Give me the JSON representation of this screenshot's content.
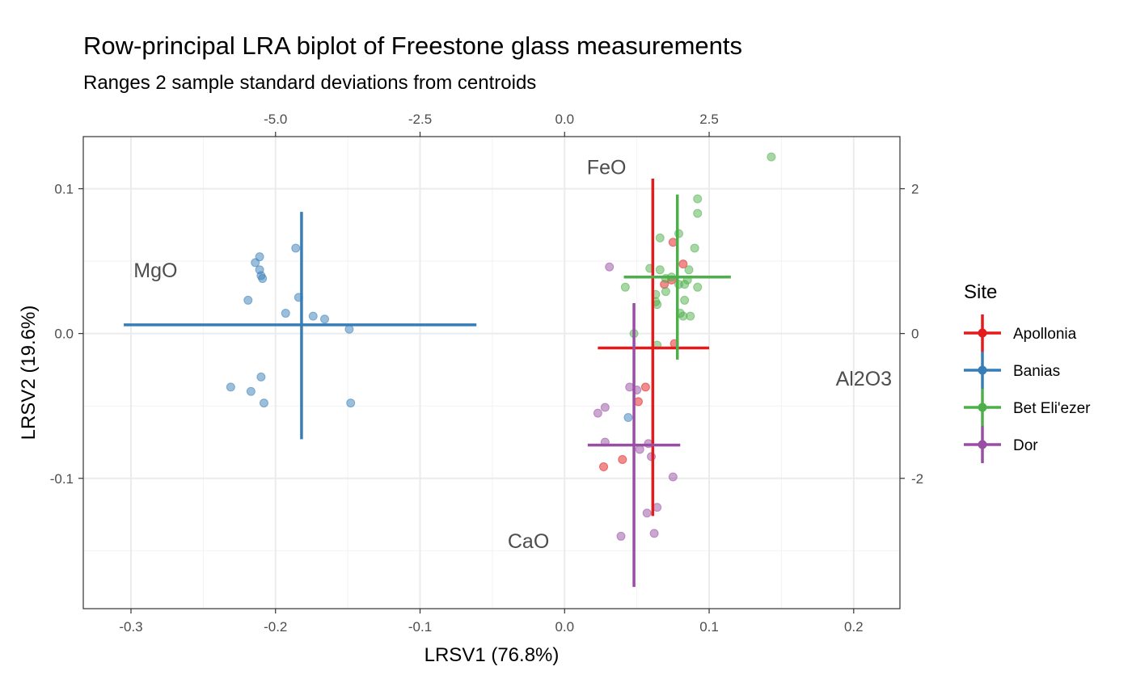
{
  "chart_data": {
    "type": "scatter",
    "title": "Row-principal LRA biplot of Freestone glass measurements",
    "subtitle": "Ranges 2 sample standard deviations from centroids",
    "xlabel": "LRSV1 (76.8%)",
    "ylabel": "LRSV2 (19.6%)",
    "xlim": [
      -0.333,
      0.232
    ],
    "ylim": [
      -0.19,
      0.136
    ],
    "x_ticks": [
      -0.3,
      -0.2,
      -0.1,
      0.0,
      0.1,
      0.2
    ],
    "x_tick_labels": [
      "-0.3",
      "-0.2",
      "-0.1",
      "0.0",
      "0.1",
      "0.2"
    ],
    "y_ticks": [
      -0.1,
      0.0,
      0.1
    ],
    "y_tick_labels": [
      "-0.1",
      "0.0",
      "0.1"
    ],
    "secondary_x_ticks": [
      -5.0,
      -2.5,
      0.0,
      2.5
    ],
    "secondary_x_tick_labels": [
      "-5.0",
      "-2.5",
      "0.0",
      "2.5"
    ],
    "secondary_x_scale": 0.04,
    "secondary_y_ticks": [
      -2,
      0,
      2
    ],
    "secondary_y_tick_labels": [
      "-2",
      "0",
      "2"
    ],
    "secondary_y_scale": 0.05,
    "grid": true,
    "legend_title": "Site",
    "legend_position": "right",
    "series": [
      {
        "name": "Apollonia",
        "color": "#E41A1C",
        "points": [
          [
            0.075,
            0.063
          ],
          [
            0.082,
            0.048
          ],
          [
            0.074,
            0.037
          ],
          [
            0.069,
            0.034
          ],
          [
            0.076,
            -0.007
          ],
          [
            0.056,
            -0.037
          ],
          [
            0.051,
            -0.047
          ],
          [
            0.04,
            -0.087
          ],
          [
            0.027,
            -0.092
          ]
        ],
        "range": {
          "cx": 0.061,
          "cy": -0.01,
          "x": [
            0.023,
            0.1
          ],
          "y": [
            -0.126,
            0.107
          ]
        }
      },
      {
        "name": "Banias",
        "color": "#377EB8",
        "points": [
          [
            -0.186,
            0.059
          ],
          [
            -0.211,
            0.053
          ],
          [
            -0.214,
            0.049
          ],
          [
            -0.211,
            0.044
          ],
          [
            -0.21,
            0.04
          ],
          [
            -0.209,
            0.038
          ],
          [
            -0.184,
            0.025
          ],
          [
            -0.219,
            0.023
          ],
          [
            -0.193,
            0.014
          ],
          [
            -0.174,
            0.012
          ],
          [
            -0.166,
            0.01
          ],
          [
            -0.149,
            0.003
          ],
          [
            -0.21,
            -0.03
          ],
          [
            -0.231,
            -0.037
          ],
          [
            -0.217,
            -0.04
          ],
          [
            -0.208,
            -0.048
          ],
          [
            -0.148,
            -0.048
          ],
          [
            0.044,
            -0.058
          ]
        ],
        "range": {
          "cx": -0.182,
          "cy": 0.006,
          "x": [
            -0.305,
            -0.061
          ],
          "y": [
            -0.073,
            0.084
          ]
        }
      },
      {
        "name": "Bet Eli'ezer",
        "color": "#4DAF4A",
        "points": [
          [
            0.143,
            0.122
          ],
          [
            0.092,
            0.093
          ],
          [
            0.092,
            0.083
          ],
          [
            0.079,
            0.069
          ],
          [
            0.066,
            0.066
          ],
          [
            0.09,
            0.059
          ],
          [
            0.059,
            0.045
          ],
          [
            0.066,
            0.044
          ],
          [
            0.086,
            0.044
          ],
          [
            0.074,
            0.039
          ],
          [
            0.07,
            0.038
          ],
          [
            0.085,
            0.037
          ],
          [
            0.083,
            0.034
          ],
          [
            0.079,
            0.034
          ],
          [
            0.092,
            0.032
          ],
          [
            0.042,
            0.032
          ],
          [
            0.07,
            0.029
          ],
          [
            0.063,
            0.027
          ],
          [
            0.063,
            0.022
          ],
          [
            0.064,
            0.02
          ],
          [
            0.083,
            0.023
          ],
          [
            0.08,
            0.014
          ],
          [
            0.082,
            0.012
          ],
          [
            0.087,
            0.012
          ],
          [
            0.048,
            0.0
          ],
          [
            0.064,
            -0.008
          ]
        ],
        "range": {
          "cx": 0.078,
          "cy": 0.039,
          "x": [
            0.041,
            0.115
          ],
          "y": [
            -0.018,
            0.096
          ]
        }
      },
      {
        "name": "Dor",
        "color": "#984EA3",
        "points": [
          [
            0.031,
            0.046
          ],
          [
            0.045,
            -0.037
          ],
          [
            0.05,
            -0.039
          ],
          [
            0.028,
            -0.051
          ],
          [
            0.023,
            -0.055
          ],
          [
            0.028,
            -0.075
          ],
          [
            0.058,
            -0.076
          ],
          [
            0.052,
            -0.08
          ],
          [
            0.06,
            -0.085
          ],
          [
            0.075,
            -0.099
          ],
          [
            0.064,
            -0.12
          ],
          [
            0.057,
            -0.124
          ],
          [
            0.062,
            -0.138
          ],
          [
            0.039,
            -0.14
          ]
        ],
        "range": {
          "cx": 0.048,
          "cy": -0.077,
          "x": [
            0.016,
            0.08
          ],
          "y": [
            -0.175,
            0.021
          ]
        }
      }
    ],
    "variables": [
      {
        "name": "FeO",
        "x": 0.029,
        "y": 0.11
      },
      {
        "name": "MgO",
        "x": -0.283,
        "y": 0.039
      },
      {
        "name": "Al2O3",
        "x": 0.207,
        "y": -0.036
      },
      {
        "name": "CaO",
        "x": -0.025,
        "y": -0.148
      }
    ]
  }
}
